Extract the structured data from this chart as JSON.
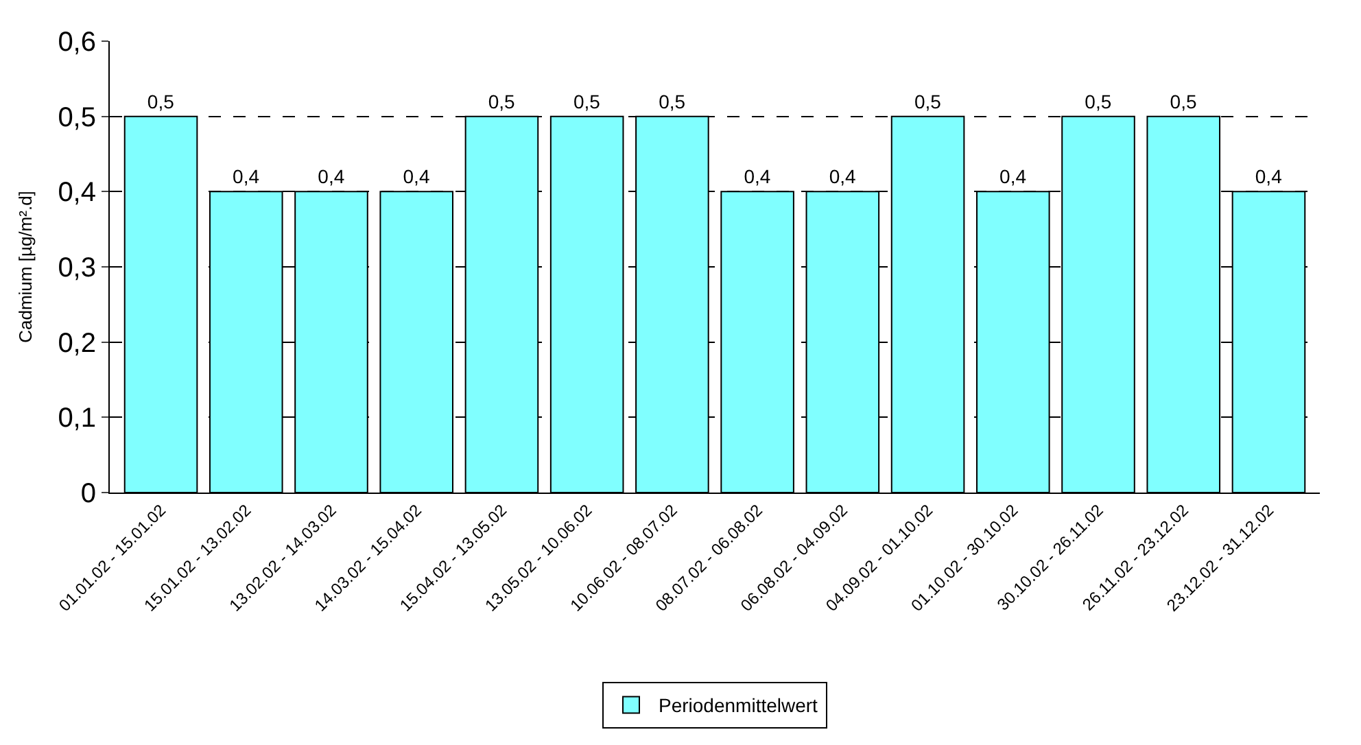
{
  "chart_data": {
    "type": "bar",
    "ylabel": "Cadmium [µg/m².d]",
    "categories": [
      "01.01.02 - 15.01.02",
      "15.01.02 - 13.02.02",
      "13.02.02 - 14.03.02",
      "14.03.02 - 15.04.02",
      "15.04.02 - 13.05.02",
      "13.05.02 - 10.06.02",
      "10.06.02 - 08.07.02",
      "08.07.02 - 06.08.02",
      "06.08.02 - 04.09.02",
      "04.09.02 - 01.10.02",
      "01.10.02 - 30.10.02",
      "30.10.02 - 26.11.02",
      "26.11.02 - 23.12.02",
      "23.12.02 - 31.12.02"
    ],
    "series": [
      {
        "name": "Periodenmittelwert",
        "color": "#80ffff",
        "values": [
          0.5,
          0.4,
          0.4,
          0.4,
          0.5,
          0.5,
          0.5,
          0.4,
          0.4,
          0.5,
          0.4,
          0.5,
          0.5,
          0.4
        ],
        "value_labels": [
          "0,5",
          "0,4",
          "0,4",
          "0,4",
          "0,5",
          "0,5",
          "0,5",
          "0,4",
          "0,4",
          "0,5",
          "0,4",
          "0,5",
          "0,5",
          "0,4"
        ]
      }
    ],
    "ylim": [
      0,
      0.6
    ],
    "yticks": [
      0,
      {
        "value": 0.1,
        "label": "0,1"
      },
      {
        "value": 0.2,
        "label": "0,2"
      },
      {
        "value": 0.3,
        "label": "0,3"
      },
      {
        "value": 0.4,
        "label": "0,4"
      },
      {
        "value": 0.5,
        "label": "0,5"
      },
      {
        "value": 0.6,
        "label": "0,6"
      }
    ],
    "grid": "y",
    "legend": "bottom"
  }
}
